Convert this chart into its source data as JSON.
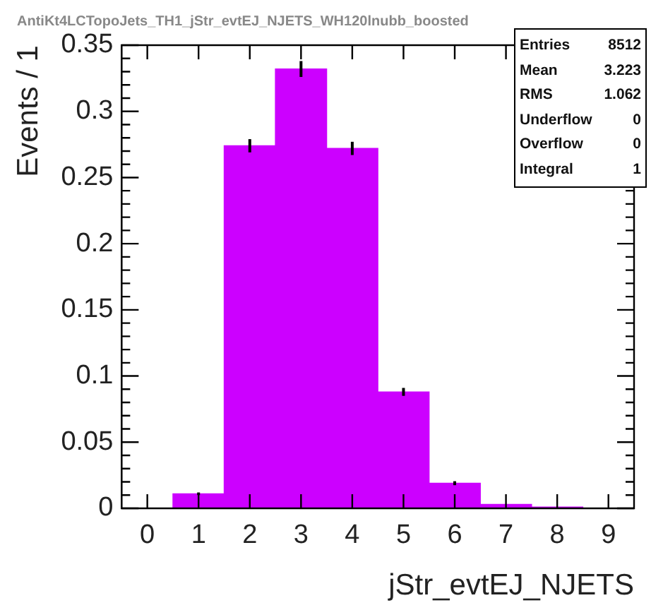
{
  "chart_data": {
    "type": "histogram",
    "title": "AntiKt4LCTopoJets_TH1_jStr_evtEJ_NJETS_WH120lnubb_boosted",
    "xlabel": "jStr_evtEJ_NJETS",
    "ylabel": "Events / 1",
    "bins": [
      -0.5,
      0.5,
      1.5,
      2.5,
      3.5,
      4.5,
      5.5,
      6.5,
      7.5,
      8.5,
      9.5
    ],
    "values": [
      0,
      0.011,
      0.274,
      0.332,
      0.272,
      0.088,
      0.019,
      0.003,
      0.001,
      0
    ],
    "errors": [
      null,
      0.001,
      0.005,
      0.006,
      0.005,
      0.003,
      0.0015,
      null,
      null,
      null
    ],
    "color": "#cc00ff",
    "xlim": [
      -0.5,
      9.5
    ],
    "xticks": [
      0,
      1,
      2,
      3,
      4,
      5,
      6,
      7,
      8,
      9
    ],
    "ylim": [
      0,
      0.35
    ],
    "yticks": [
      0,
      0.05,
      0.1,
      0.15,
      0.2,
      0.25,
      0.3,
      0.35
    ],
    "grid": false,
    "legend": false,
    "annotations": [
      "Entries",
      "8512",
      "Mean",
      "3.223",
      "RMS",
      "1.062",
      "Underflow",
      "0",
      "Overflow",
      "0",
      "Integral",
      "1"
    ]
  }
}
